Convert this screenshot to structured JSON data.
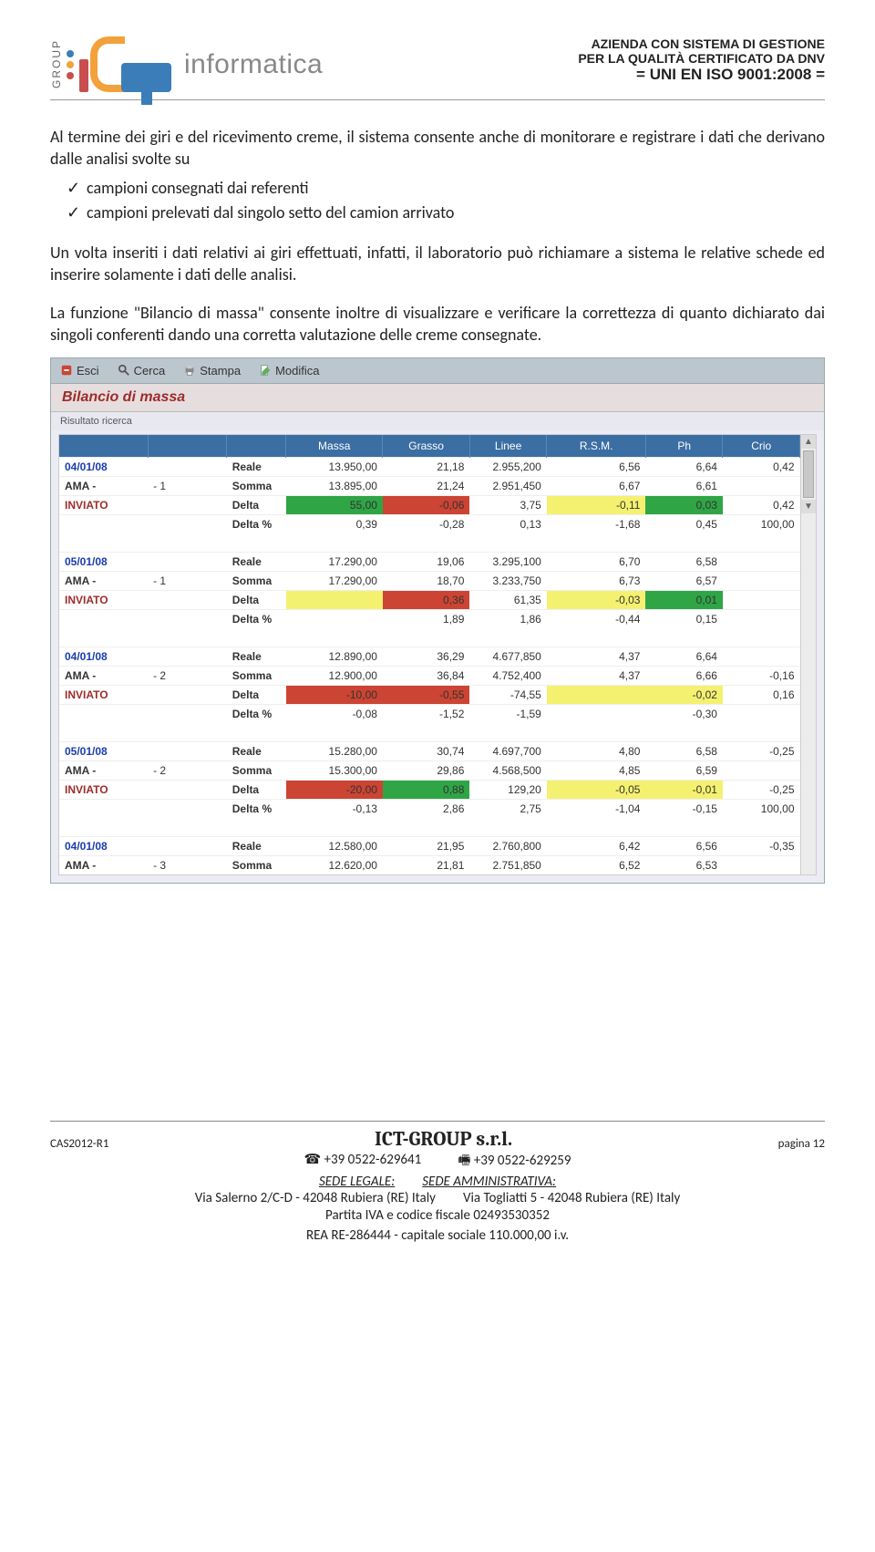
{
  "header": {
    "group": "GROUP",
    "brand": "informatica",
    "cert_line1": "AZIENDA CON SISTEMA DI GESTIONE",
    "cert_line2": "PER LA QUALITÀ CERTIFICATO DA DNV",
    "cert_line3": "= UNI EN ISO 9001:2008 =",
    "dot_colors": [
      "#3b7db8",
      "#f2a13b",
      "#c94e4e"
    ]
  },
  "body": {
    "para1": "Al termine dei giri e del ricevimento creme, il sistema consente anche di monitorare e registrare i dati che derivano dalle analisi svolte su",
    "bullets": [
      "campioni consegnati dai referenti",
      "campioni prelevati dal singolo setto del camion arrivato"
    ],
    "para2": "Un volta inseriti i dati relativi ai giri effettuati, infatti, il laboratorio può richiamare a sistema le relative schede ed inserire solamente i dati delle analisi.",
    "para3": "La funzione \"Bilancio di massa\" consente inoltre di visualizzare e verificare la correttezza di quanto dichiarato dai singoli conferenti dando una corretta valutazione delle creme consegnate."
  },
  "app": {
    "toolbar": {
      "esci": "Esci",
      "cerca": "Cerca",
      "stampa": "Stampa",
      "modifica": "Modifica"
    },
    "title": "Bilancio di massa",
    "fieldset": "Risultato ricerca",
    "headers": [
      "",
      "",
      "",
      "Massa",
      "Grasso",
      "Linee",
      "R.S.M.",
      "Ph",
      "Crio"
    ],
    "col_widths": [
      "80",
      "70",
      "50",
      "88",
      "78",
      "68",
      "90",
      "68",
      "68",
      "68"
    ],
    "groups": [
      {
        "date": "04/01/08",
        "label": "AMA -",
        "num": "- 1",
        "status": "INVIATO",
        "rows": [
          {
            "m": "Reale",
            "c": [
              "13.950,00",
              "21,18",
              "2.955,200",
              "6,56",
              "6,64",
              "0,42"
            ],
            "bg": [
              "",
              "",
              "",
              "",
              "",
              ""
            ]
          },
          {
            "m": "Somma",
            "c": [
              "13.895,00",
              "21,24",
              "2.951,450",
              "6,67",
              "6,61",
              ""
            ],
            "bg": [
              "",
              "",
              "",
              "",
              "",
              ""
            ]
          },
          {
            "m": "Delta",
            "c": [
              "55,00",
              "-0,06",
              "3,75",
              "-0,11",
              "0,03",
              "0,42"
            ],
            "bg": [
              "green",
              "red",
              "",
              "yellow",
              "green",
              ""
            ]
          },
          {
            "m": "Delta %",
            "c": [
              "0,39",
              "-0,28",
              "0,13",
              "-1,68",
              "0,45",
              "100,00"
            ],
            "bg": [
              "",
              "",
              "",
              "",
              "",
              ""
            ]
          }
        ]
      },
      {
        "date": "05/01/08",
        "label": "AMA -",
        "num": "- 1",
        "status": "INVIATO",
        "rows": [
          {
            "m": "Reale",
            "c": [
              "17.290,00",
              "19,06",
              "3.295,100",
              "6,70",
              "6,58",
              ""
            ],
            "bg": [
              "",
              "",
              "",
              "",
              "",
              ""
            ]
          },
          {
            "m": "Somma",
            "c": [
              "17.290,00",
              "18,70",
              "3.233,750",
              "6,73",
              "6,57",
              ""
            ],
            "bg": [
              "",
              "",
              "",
              "",
              "",
              ""
            ]
          },
          {
            "m": "Delta",
            "c": [
              "",
              "0,36",
              "61,35",
              "-0,03",
              "0,01",
              ""
            ],
            "bg": [
              "yellow",
              "red",
              "",
              "yellow",
              "green",
              ""
            ]
          },
          {
            "m": "Delta %",
            "c": [
              "",
              "1,89",
              "1,86",
              "-0,44",
              "0,15",
              ""
            ],
            "bg": [
              "",
              "",
              "",
              "",
              "",
              ""
            ]
          }
        ]
      },
      {
        "date": "04/01/08",
        "label": "AMA -",
        "num": "- 2",
        "status": "INVIATO",
        "rows": [
          {
            "m": "Reale",
            "c": [
              "12.890,00",
              "36,29",
              "4.677,850",
              "4,37",
              "6,64",
              ""
            ],
            "bg": [
              "",
              "",
              "",
              "",
              "",
              ""
            ]
          },
          {
            "m": "Somma",
            "c": [
              "12.900,00",
              "36,84",
              "4.752,400",
              "4,37",
              "6,66",
              "-0,16"
            ],
            "bg": [
              "",
              "",
              "",
              "",
              "",
              ""
            ]
          },
          {
            "m": "Delta",
            "c": [
              "-10,00",
              "-0,55",
              "-74,55",
              "",
              "-0,02",
              "0,16"
            ],
            "bg": [
              "red",
              "red",
              "",
              "yellow",
              "yellow",
              ""
            ]
          },
          {
            "m": "Delta %",
            "c": [
              "-0,08",
              "-1,52",
              "-1,59",
              "",
              "-0,30",
              ""
            ],
            "bg": [
              "",
              "",
              "",
              "",
              "",
              ""
            ]
          }
        ]
      },
      {
        "date": "05/01/08",
        "label": "AMA -",
        "num": "- 2",
        "status": "INVIATO",
        "rows": [
          {
            "m": "Reale",
            "c": [
              "15.280,00",
              "30,74",
              "4.697,700",
              "4,80",
              "6,58",
              "-0,25"
            ],
            "bg": [
              "",
              "",
              "",
              "",
              "",
              ""
            ]
          },
          {
            "m": "Somma",
            "c": [
              "15.300,00",
              "29,86",
              "4.568,500",
              "4,85",
              "6,59",
              ""
            ],
            "bg": [
              "",
              "",
              "",
              "",
              "",
              ""
            ]
          },
          {
            "m": "Delta",
            "c": [
              "-20,00",
              "0,88",
              "129,20",
              "-0,05",
              "-0,01",
              "-0,25"
            ],
            "bg": [
              "red",
              "green",
              "",
              "yellow",
              "yellow",
              ""
            ]
          },
          {
            "m": "Delta %",
            "c": [
              "-0,13",
              "2,86",
              "2,75",
              "-1,04",
              "-0,15",
              "100,00"
            ],
            "bg": [
              "",
              "",
              "",
              "",
              "",
              ""
            ]
          }
        ]
      },
      {
        "date": "04/01/08",
        "label": "AMA -",
        "num": "- 3",
        "status": "",
        "rows": [
          {
            "m": "Reale",
            "c": [
              "12.580,00",
              "21,95",
              "2.760,800",
              "6,42",
              "6,56",
              "-0,35"
            ],
            "bg": [
              "",
              "",
              "",
              "",
              "",
              ""
            ]
          },
          {
            "m": "Somma",
            "c": [
              "12.620,00",
              "21,81",
              "2.751,850",
              "6,52",
              "6,53",
              ""
            ],
            "bg": [
              "",
              "",
              "",
              "",
              "",
              ""
            ]
          }
        ]
      }
    ]
  },
  "footer": {
    "cas": "CAS2012-R1",
    "ictg": "ICT-GROUP s.r.l.",
    "pagina": "pagina 12",
    "tel": "☎ +39 0522-629641",
    "fax": "🖷 +39 0522-629259",
    "sede_leg": "SEDE LEGALE:",
    "sede_amm": "SEDE AMMINISTRATIVA:",
    "addr1": "Via Salerno 2/C-D - 42048 Rubiera (RE) Italy",
    "addr2": "Via Togliatti 5 - 42048 Rubiera (RE) Italy",
    "piva": "Partita IVA e codice fiscale 02493530352",
    "rea": "REA  RE-286444  -  capitale sociale 110.000,00 i.v."
  }
}
